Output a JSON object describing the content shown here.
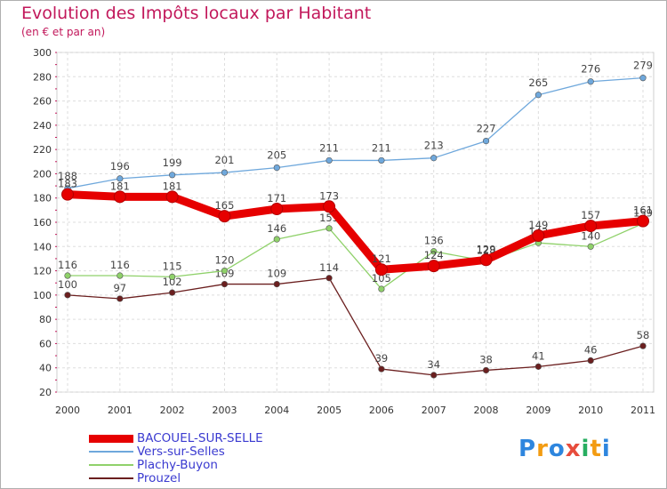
{
  "title": "Evolution des Impôts locaux par Habitant",
  "subtitle": "(en € et par an)",
  "brand": {
    "letters": [
      "P",
      "r",
      "o",
      "x",
      "i",
      "t",
      "i"
    ],
    "colors": [
      "#2e86de",
      "#f39c12",
      "#2e86de",
      "#e74c3c",
      "#27ae60",
      "#f39c12",
      "#2e86de"
    ]
  },
  "chart_data": {
    "type": "line",
    "x": [
      "2000",
      "2001",
      "2002",
      "2003",
      "2004",
      "2005",
      "2006",
      "2007",
      "2008",
      "2009",
      "2010",
      "2011"
    ],
    "ylim": [
      20,
      300
    ],
    "yticks": [
      "20",
      "40",
      "60",
      "80",
      "100",
      "120",
      "140",
      "160",
      "180",
      "200",
      "220",
      "240",
      "260",
      "280",
      "300"
    ],
    "grid": true,
    "legend_position": "bottom-left",
    "series": [
      {
        "name": "BACOUEL-SUR-SELLE",
        "color": "#e60000",
        "values": [
          183,
          181,
          181,
          165,
          171,
          173,
          121,
          124,
          129,
          149,
          157,
          161
        ],
        "labels": [
          "183",
          "181",
          "181",
          "165",
          "171",
          "173",
          "121",
          "124",
          "129",
          "149",
          "157",
          "161"
        ]
      },
      {
        "name": "Vers-sur-Selles",
        "color": "#6fa8dc",
        "values": [
          188,
          196,
          199,
          201,
          205,
          211,
          211,
          213,
          227,
          265,
          276,
          279
        ],
        "labels": [
          "188",
          "196",
          "199",
          "201",
          "205",
          "211",
          "211",
          "213",
          "227",
          "265",
          "276",
          "279"
        ]
      },
      {
        "name": "Plachy-Buyon",
        "color": "#8fd16a",
        "values": [
          116,
          116,
          115,
          120,
          146,
          155,
          105,
          136,
          128,
          143,
          140,
          159
        ],
        "labels": [
          "116",
          "116",
          "115",
          "120",
          "146",
          "155",
          "105",
          "136",
          "128",
          "143",
          "140",
          "159"
        ]
      },
      {
        "name": "Prouzel",
        "color": "#6b1f1f",
        "values": [
          100,
          97,
          102,
          109,
          109,
          114,
          39,
          34,
          38,
          41,
          46,
          58
        ],
        "labels": [
          "100",
          "97",
          "102",
          "109",
          "109",
          "114",
          "39",
          "34",
          "38",
          "41",
          "46",
          "58"
        ]
      }
    ]
  }
}
